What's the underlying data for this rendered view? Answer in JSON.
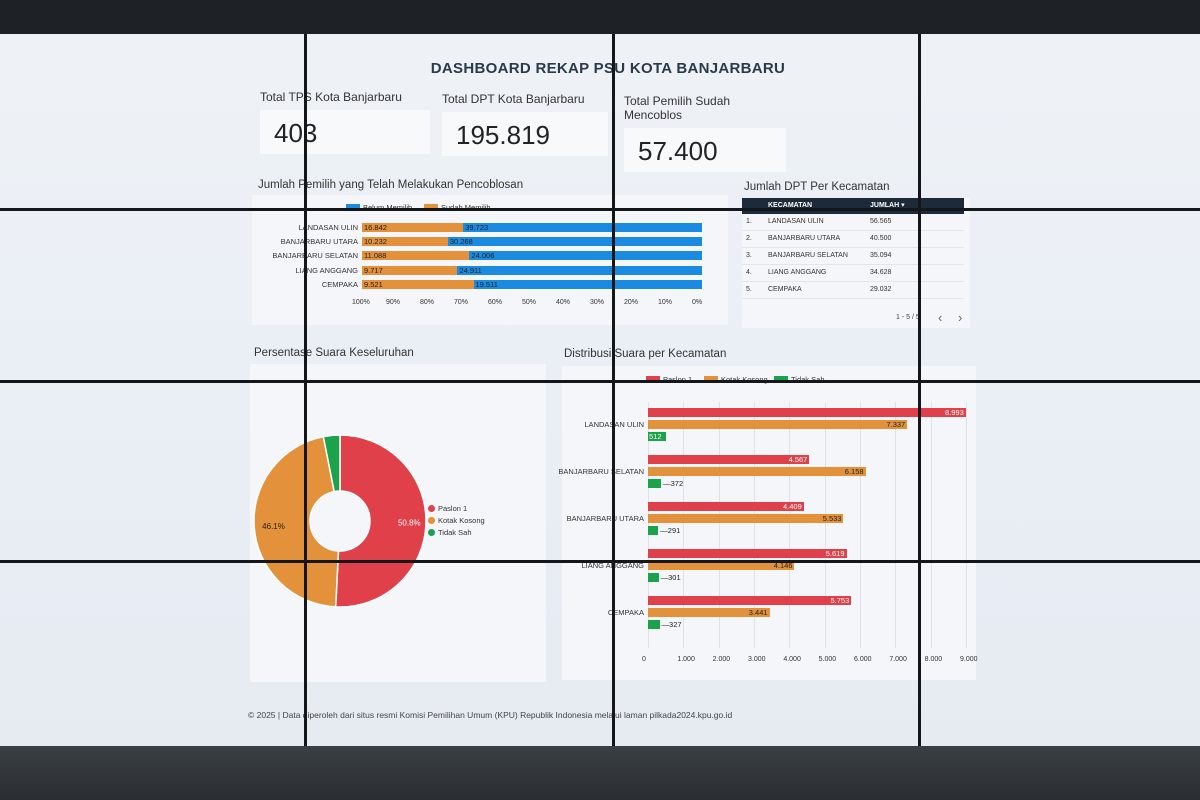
{
  "dashboard": {
    "title": "DASHBOARD REKAP PSU KOTA BANJARBARU",
    "footer": "© 2025 | Data diperoleh dari situs resmi Komisi Pemilihan Umum (KPU) Republik Indonesia melalui laman pilkada2024.kpu.go.id"
  },
  "kpis": [
    {
      "label": "Total TPS Kota Banjarbaru",
      "value": "403"
    },
    {
      "label": "Total DPT Kota Banjarbaru",
      "value": "195.819"
    },
    {
      "label": "Total Pemilih Sudah Mencoblos",
      "value": "57.400"
    }
  ],
  "colors": {
    "blue": "#1a8be0",
    "orange": "#e3913b",
    "red": "#e0404a",
    "green": "#1aa34a",
    "table_header": "#1d2a3a"
  },
  "chart_data": [
    {
      "type": "bar",
      "orientation": "horizontal-stacked-100",
      "title": "Jumlah Pemilih yang Telah Melakukan Pencoblosan",
      "legend": [
        "Belum Memilih",
        "Sudah Memilih"
      ],
      "categories": [
        "LANDASAN ULIN",
        "BANJARBARU UTARA",
        "BANJARBARU SELATAN",
        "LIANG ANGGANG",
        "CEMPAKA"
      ],
      "series": [
        {
          "name": "Sudah Memilih",
          "values": [
            "16.842",
            "10.232",
            "11.088",
            "9.717",
            "9.521"
          ],
          "numeric": [
            16842,
            10232,
            11088,
            9717,
            9521
          ]
        },
        {
          "name": "Belum Memilih",
          "values": [
            "39.723",
            "30.268",
            "24.006",
            "24.911",
            "19.511"
          ],
          "numeric": [
            39723,
            30268,
            24006,
            24911,
            19511
          ]
        }
      ],
      "ticks": [
        "100%",
        "90%",
        "80%",
        "70%",
        "60%",
        "50%",
        "40%",
        "30%",
        "20%",
        "10%",
        "0%"
      ]
    },
    {
      "type": "pie",
      "title": "Persentase Suara Keseluruhan",
      "labels": [
        "Paslon 1",
        "Kotak Kosong",
        "Tidak Sah"
      ],
      "values": [
        50.8,
        46.1,
        3.1
      ],
      "display": [
        "50.8%",
        "46.1%",
        ""
      ]
    },
    {
      "type": "bar",
      "orientation": "horizontal-grouped",
      "title": "Distribusi Suara per Kecamatan",
      "legend": [
        "Paslon 1",
        "Kotak Kosong",
        "Tidak Sah"
      ],
      "categories": [
        "LANDASAN ULIN",
        "BANJARBARU SELATAN",
        "BANJARBARU UTARA",
        "LIANG ANGGANG",
        "CEMPAKA"
      ],
      "series": [
        {
          "name": "Paslon 1",
          "values": [
            8993,
            4567,
            4409,
            5619,
            5753
          ],
          "labels": [
            "8.993",
            "4.567",
            "4.409",
            "5.619",
            "5.753"
          ]
        },
        {
          "name": "Kotak Kosong",
          "values": [
            7337,
            6158,
            5533,
            4146,
            3441
          ],
          "labels": [
            "7.337",
            "6.158",
            "5.533",
            "4.146",
            "3.441"
          ]
        },
        {
          "name": "Tidak Sah",
          "values": [
            512,
            372,
            291,
            301,
            327
          ],
          "labels": [
            "512",
            "372",
            "291",
            "301",
            "327"
          ]
        }
      ],
      "xlim": [
        0,
        9000
      ],
      "ticks": [
        "0",
        "1.000",
        "2.000",
        "3.000",
        "4.000",
        "5.000",
        "6.000",
        "7.000",
        "8.000",
        "9.000"
      ]
    }
  ],
  "dpt_table": {
    "title": "Jumlah DPT Per Kecamatan",
    "headers": [
      "KECAMATAN",
      "JUMLAH ▾"
    ],
    "rows": [
      {
        "no": "1.",
        "name": "LANDASAN ULIN",
        "value": "56.565"
      },
      {
        "no": "2.",
        "name": "BANJARBARU UTARA",
        "value": "40.500"
      },
      {
        "no": "3.",
        "name": "BANJARBARU SELATAN",
        "value": "35.094"
      },
      {
        "no": "4.",
        "name": "LIANG ANGGANG",
        "value": "34.628"
      },
      {
        "no": "5.",
        "name": "CEMPAKA",
        "value": "29.032"
      }
    ],
    "pagination": "1 - 5 / 5",
    "prev": "‹",
    "next": "›"
  }
}
